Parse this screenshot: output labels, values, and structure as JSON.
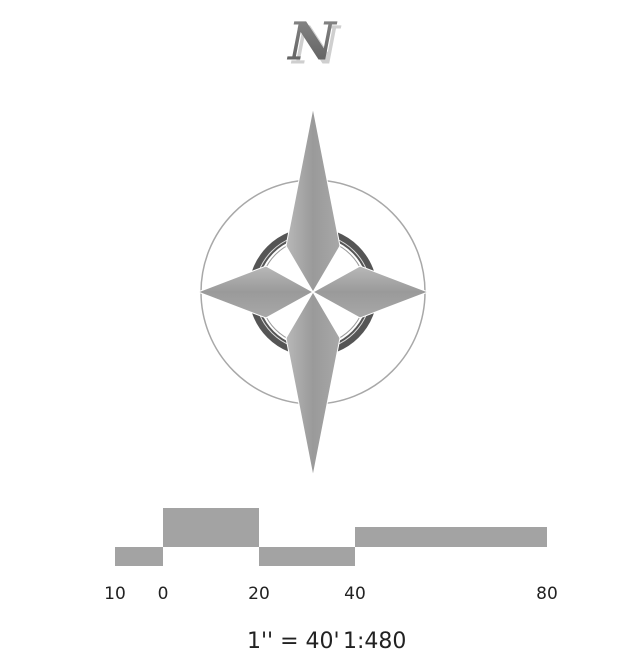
{
  "north_arrow": {
    "label": "N"
  },
  "scale_bar": {
    "labels": [
      "10",
      "0",
      "20",
      "40",
      "80"
    ],
    "scale_text": "1'' = 40'",
    "ratio_text": "1:480"
  }
}
